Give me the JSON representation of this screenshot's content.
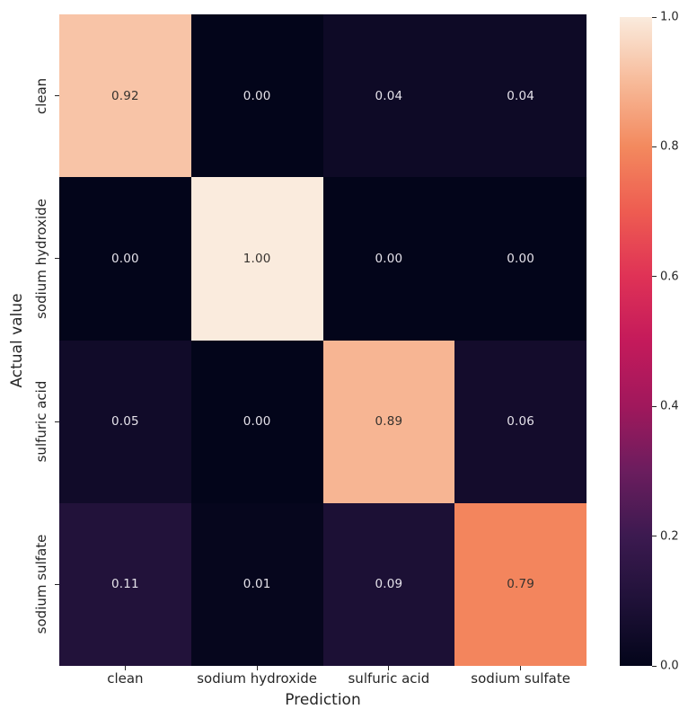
{
  "chart_data": {
    "type": "heatmap",
    "title": "",
    "xlabel": "Prediction",
    "ylabel": "Actual value",
    "x_categories": [
      "clean",
      "sodium hydroxide",
      "sulfuric acid",
      "sodium sulfate"
    ],
    "y_categories": [
      "clean",
      "sodium hydroxide",
      "sulfuric acid",
      "sodium sulfate"
    ],
    "matrix": [
      [
        0.92,
        0.0,
        0.04,
        0.04
      ],
      [
        0.0,
        1.0,
        0.0,
        0.0
      ],
      [
        0.05,
        0.0,
        0.89,
        0.06
      ],
      [
        0.11,
        0.01,
        0.09,
        0.79
      ]
    ],
    "cell_labels": [
      [
        "0.92",
        "0.00",
        "0.04",
        "0.04"
      ],
      [
        "0.00",
        "1.00",
        "0.00",
        "0.00"
      ],
      [
        "0.05",
        "0.00",
        "0.89",
        "0.06"
      ],
      [
        "0.11",
        "0.01",
        "0.09",
        "0.79"
      ]
    ],
    "value_range": [
      0.0,
      1.0
    ],
    "grid": false,
    "legend_position": "right-colorbar",
    "colorbar": {
      "tick_labels": [
        "1.0",
        "0.8",
        "0.6",
        "0.4",
        "0.2",
        "0.0"
      ],
      "tick_values": [
        1.0,
        0.8,
        0.6,
        0.4,
        0.2,
        0.0
      ]
    },
    "colormap": {
      "name": "rocket",
      "stops": [
        {
          "t": 0.0,
          "color": "#03051A"
        },
        {
          "t": 0.1,
          "color": "#1F1138"
        },
        {
          "t": 0.2,
          "color": "#3C1A50"
        },
        {
          "t": 0.3,
          "color": "#6B1D5E"
        },
        {
          "t": 0.4,
          "color": "#A0185C"
        },
        {
          "t": 0.5,
          "color": "#C41A5B"
        },
        {
          "t": 0.6,
          "color": "#DF3256"
        },
        {
          "t": 0.7,
          "color": "#EE5C51"
        },
        {
          "t": 0.8,
          "color": "#F3895E"
        },
        {
          "t": 0.9,
          "color": "#F7BA99"
        },
        {
          "t": 1.0,
          "color": "#FAEBDD"
        }
      ]
    },
    "annotation_colors": {
      "on_dark": "#E5E2EA",
      "on_light": "#36322E"
    },
    "tick_color": "#262626"
  }
}
